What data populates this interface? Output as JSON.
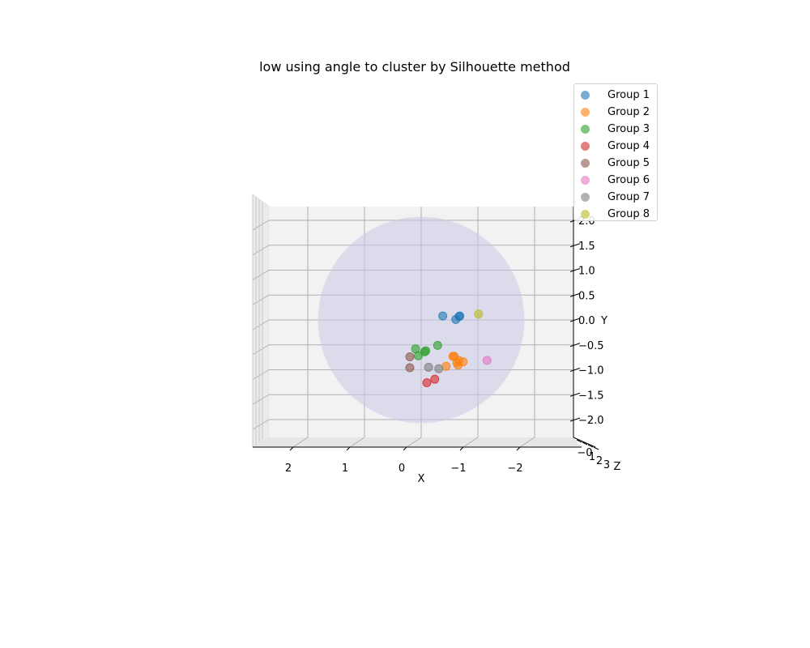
{
  "chart_data": {
    "type": "scatter",
    "title": "low using angle to cluster by Silhouette method",
    "xlabel": "X",
    "ylabel": "Y",
    "zlabel": "Z",
    "x_ticks": [
      "2",
      "1",
      "0",
      "−1",
      "−2"
    ],
    "y_ticks": [
      "2.0",
      "1.5",
      "1.0",
      "0.5",
      "0.0",
      "−0.5",
      "−1.0",
      "−1.5",
      "−2.0"
    ],
    "z_ticks": [
      "−0",
      "1",
      "2",
      "3"
    ],
    "xlim": [
      2.8,
      -2.8
    ],
    "ylim": [
      -2.2,
      2.2
    ],
    "x_inverted": true,
    "view": "front",
    "grid": true,
    "legend_position": "top-right",
    "sphere": {
      "radius": 1.8,
      "color": "#c8c8e6"
    },
    "series": [
      {
        "name": "Group 1",
        "color": "#1f77b4",
        "points": [
          [
            -0.38,
            0.08
          ],
          [
            -0.68,
            0.08
          ],
          [
            -0.61,
            0.01
          ],
          [
            -0.67,
            0.07
          ]
        ]
      },
      {
        "name": "Group 2",
        "color": "#ff7f0e",
        "points": [
          [
            -0.56,
            -0.73
          ],
          [
            -0.63,
            -0.86
          ],
          [
            -0.74,
            -0.84
          ],
          [
            -0.65,
            -0.91
          ],
          [
            -0.44,
            -0.93
          ],
          [
            -0.58,
            -0.73
          ],
          [
            -0.66,
            -0.81
          ]
        ]
      },
      {
        "name": "Group 3",
        "color": "#2ca02c",
        "points": [
          [
            0.1,
            -0.58
          ],
          [
            -0.29,
            -0.51
          ],
          [
            0.05,
            -0.72
          ],
          [
            -0.06,
            -0.64
          ],
          [
            -0.08,
            -0.62
          ]
        ]
      },
      {
        "name": "Group 4",
        "color": "#d62728",
        "points": [
          [
            -0.1,
            -1.26
          ],
          [
            -0.24,
            -1.19
          ]
        ]
      },
      {
        "name": "Group 5",
        "color": "#8c564b",
        "points": [
          [
            0.2,
            -0.74
          ],
          [
            0.2,
            -0.96
          ]
        ]
      },
      {
        "name": "Group 6",
        "color": "#e377c2",
        "points": [
          [
            -1.16,
            -0.81
          ]
        ]
      },
      {
        "name": "Group 7",
        "color": "#7f7f7f",
        "points": [
          [
            -0.13,
            -0.95
          ],
          [
            -0.31,
            -0.98
          ]
        ]
      },
      {
        "name": "Group 8",
        "color": "#bcbd22",
        "points": [
          [
            -1.01,
            0.12
          ]
        ]
      }
    ]
  }
}
